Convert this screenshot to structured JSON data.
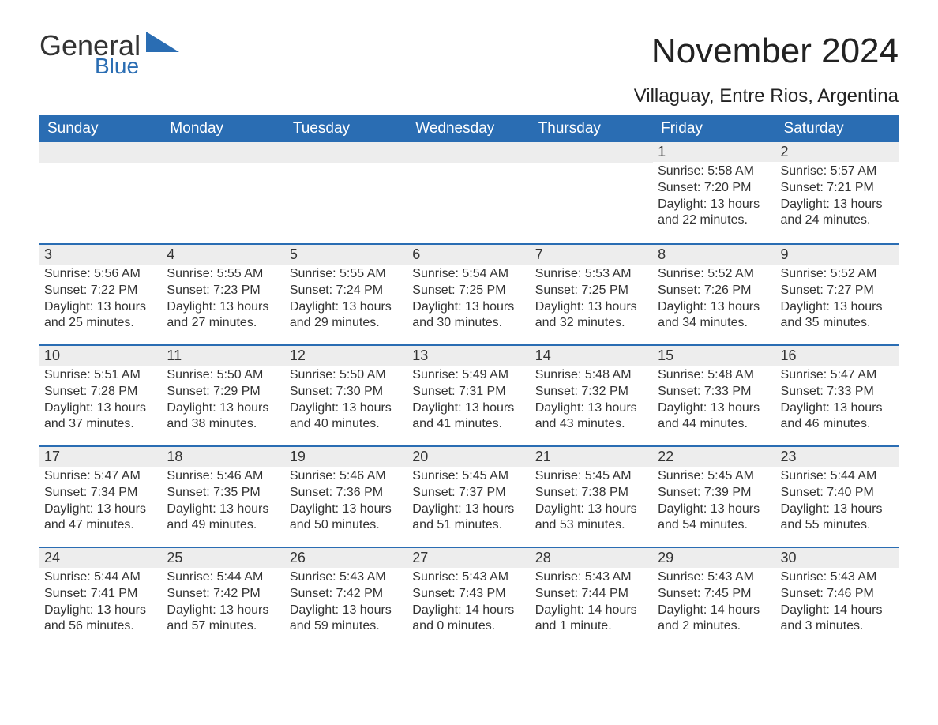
{
  "brand": {
    "word1": "General",
    "word2": "Blue",
    "word1_color": "#333333",
    "word2_color": "#2a6db3",
    "triangle_color": "#2a6db3"
  },
  "header": {
    "month_title": "November 2024",
    "location": "Villaguay, Entre Rios, Argentina"
  },
  "style": {
    "header_bg": "#2a6db3",
    "header_text_color": "#ffffff",
    "daynum_bg": "#ededed",
    "row_divider_color": "#2a6db3",
    "body_text_color": "#333333",
    "font_family": "Arial, Helvetica, sans-serif",
    "month_title_fontsize": 44,
    "location_fontsize": 24,
    "dow_fontsize": 19,
    "daynum_fontsize": 18,
    "body_fontsize": 16
  },
  "days_of_week": [
    "Sunday",
    "Monday",
    "Tuesday",
    "Wednesday",
    "Thursday",
    "Friday",
    "Saturday"
  ],
  "weeks": [
    [
      null,
      null,
      null,
      null,
      null,
      {
        "n": "1",
        "sunrise": "Sunrise: 5:58 AM",
        "sunset": "Sunset: 7:20 PM",
        "daylight": "Daylight: 13 hours and 22 minutes."
      },
      {
        "n": "2",
        "sunrise": "Sunrise: 5:57 AM",
        "sunset": "Sunset: 7:21 PM",
        "daylight": "Daylight: 13 hours and 24 minutes."
      }
    ],
    [
      {
        "n": "3",
        "sunrise": "Sunrise: 5:56 AM",
        "sunset": "Sunset: 7:22 PM",
        "daylight": "Daylight: 13 hours and 25 minutes."
      },
      {
        "n": "4",
        "sunrise": "Sunrise: 5:55 AM",
        "sunset": "Sunset: 7:23 PM",
        "daylight": "Daylight: 13 hours and 27 minutes."
      },
      {
        "n": "5",
        "sunrise": "Sunrise: 5:55 AM",
        "sunset": "Sunset: 7:24 PM",
        "daylight": "Daylight: 13 hours and 29 minutes."
      },
      {
        "n": "6",
        "sunrise": "Sunrise: 5:54 AM",
        "sunset": "Sunset: 7:25 PM",
        "daylight": "Daylight: 13 hours and 30 minutes."
      },
      {
        "n": "7",
        "sunrise": "Sunrise: 5:53 AM",
        "sunset": "Sunset: 7:25 PM",
        "daylight": "Daylight: 13 hours and 32 minutes."
      },
      {
        "n": "8",
        "sunrise": "Sunrise: 5:52 AM",
        "sunset": "Sunset: 7:26 PM",
        "daylight": "Daylight: 13 hours and 34 minutes."
      },
      {
        "n": "9",
        "sunrise": "Sunrise: 5:52 AM",
        "sunset": "Sunset: 7:27 PM",
        "daylight": "Daylight: 13 hours and 35 minutes."
      }
    ],
    [
      {
        "n": "10",
        "sunrise": "Sunrise: 5:51 AM",
        "sunset": "Sunset: 7:28 PM",
        "daylight": "Daylight: 13 hours and 37 minutes."
      },
      {
        "n": "11",
        "sunrise": "Sunrise: 5:50 AM",
        "sunset": "Sunset: 7:29 PM",
        "daylight": "Daylight: 13 hours and 38 minutes."
      },
      {
        "n": "12",
        "sunrise": "Sunrise: 5:50 AM",
        "sunset": "Sunset: 7:30 PM",
        "daylight": "Daylight: 13 hours and 40 minutes."
      },
      {
        "n": "13",
        "sunrise": "Sunrise: 5:49 AM",
        "sunset": "Sunset: 7:31 PM",
        "daylight": "Daylight: 13 hours and 41 minutes."
      },
      {
        "n": "14",
        "sunrise": "Sunrise: 5:48 AM",
        "sunset": "Sunset: 7:32 PM",
        "daylight": "Daylight: 13 hours and 43 minutes."
      },
      {
        "n": "15",
        "sunrise": "Sunrise: 5:48 AM",
        "sunset": "Sunset: 7:33 PM",
        "daylight": "Daylight: 13 hours and 44 minutes."
      },
      {
        "n": "16",
        "sunrise": "Sunrise: 5:47 AM",
        "sunset": "Sunset: 7:33 PM",
        "daylight": "Daylight: 13 hours and 46 minutes."
      }
    ],
    [
      {
        "n": "17",
        "sunrise": "Sunrise: 5:47 AM",
        "sunset": "Sunset: 7:34 PM",
        "daylight": "Daylight: 13 hours and 47 minutes."
      },
      {
        "n": "18",
        "sunrise": "Sunrise: 5:46 AM",
        "sunset": "Sunset: 7:35 PM",
        "daylight": "Daylight: 13 hours and 49 minutes."
      },
      {
        "n": "19",
        "sunrise": "Sunrise: 5:46 AM",
        "sunset": "Sunset: 7:36 PM",
        "daylight": "Daylight: 13 hours and 50 minutes."
      },
      {
        "n": "20",
        "sunrise": "Sunrise: 5:45 AM",
        "sunset": "Sunset: 7:37 PM",
        "daylight": "Daylight: 13 hours and 51 minutes."
      },
      {
        "n": "21",
        "sunrise": "Sunrise: 5:45 AM",
        "sunset": "Sunset: 7:38 PM",
        "daylight": "Daylight: 13 hours and 53 minutes."
      },
      {
        "n": "22",
        "sunrise": "Sunrise: 5:45 AM",
        "sunset": "Sunset: 7:39 PM",
        "daylight": "Daylight: 13 hours and 54 minutes."
      },
      {
        "n": "23",
        "sunrise": "Sunrise: 5:44 AM",
        "sunset": "Sunset: 7:40 PM",
        "daylight": "Daylight: 13 hours and 55 minutes."
      }
    ],
    [
      {
        "n": "24",
        "sunrise": "Sunrise: 5:44 AM",
        "sunset": "Sunset: 7:41 PM",
        "daylight": "Daylight: 13 hours and 56 minutes."
      },
      {
        "n": "25",
        "sunrise": "Sunrise: 5:44 AM",
        "sunset": "Sunset: 7:42 PM",
        "daylight": "Daylight: 13 hours and 57 minutes."
      },
      {
        "n": "26",
        "sunrise": "Sunrise: 5:43 AM",
        "sunset": "Sunset: 7:42 PM",
        "daylight": "Daylight: 13 hours and 59 minutes."
      },
      {
        "n": "27",
        "sunrise": "Sunrise: 5:43 AM",
        "sunset": "Sunset: 7:43 PM",
        "daylight": "Daylight: 14 hours and 0 minutes."
      },
      {
        "n": "28",
        "sunrise": "Sunrise: 5:43 AM",
        "sunset": "Sunset: 7:44 PM",
        "daylight": "Daylight: 14 hours and 1 minute."
      },
      {
        "n": "29",
        "sunrise": "Sunrise: 5:43 AM",
        "sunset": "Sunset: 7:45 PM",
        "daylight": "Daylight: 14 hours and 2 minutes."
      },
      {
        "n": "30",
        "sunrise": "Sunrise: 5:43 AM",
        "sunset": "Sunset: 7:46 PM",
        "daylight": "Daylight: 14 hours and 3 minutes."
      }
    ]
  ]
}
